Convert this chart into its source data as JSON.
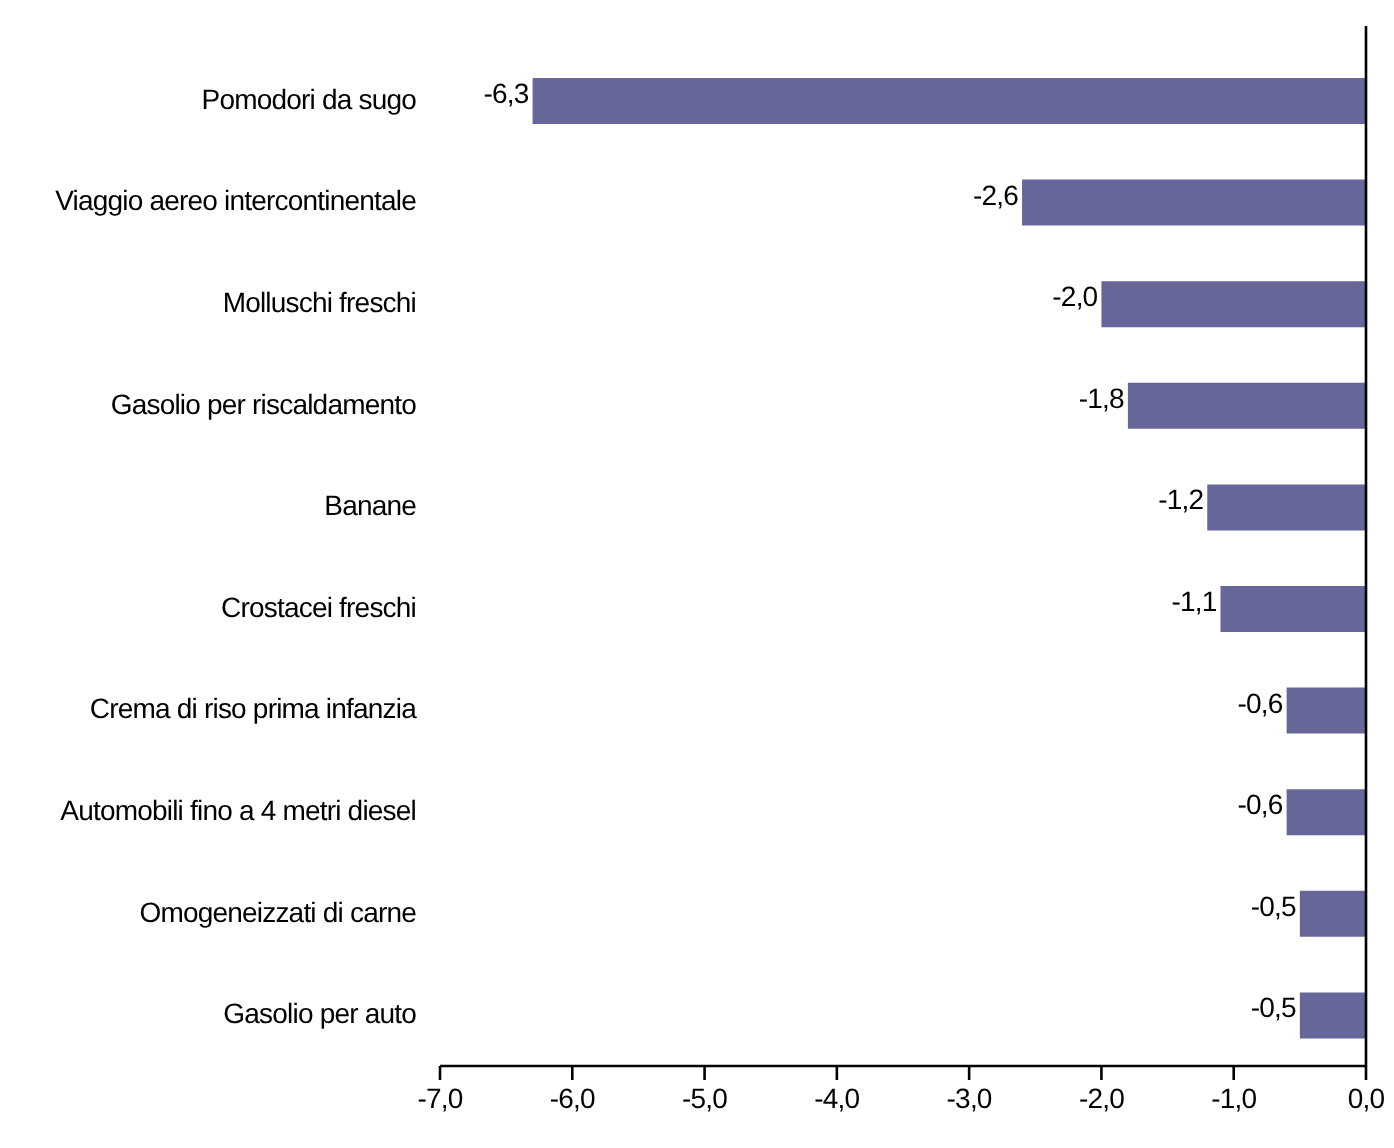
{
  "chart_data": {
    "type": "bar",
    "orientation": "horizontal",
    "categories": [
      "Pomodori da sugo",
      "Viaggio aereo intercontinentale",
      "Molluschi freschi",
      "Gasolio per riscaldamento",
      "Banane",
      "Crostacei freschi",
      "Crema di riso prima infanzia",
      "Automobili fino a 4 metri diesel",
      "Omogeneizzati di carne",
      "Gasolio per auto"
    ],
    "values": [
      -6.3,
      -2.6,
      -2.0,
      -1.8,
      -1.2,
      -1.1,
      -0.6,
      -0.6,
      -0.5,
      -0.5
    ],
    "value_labels": [
      "-6,3",
      "-2,6",
      "-2,0",
      "-1,8",
      "-1,2",
      "-1,1",
      "-0,6",
      "-0,6",
      "-0,5",
      "-0,5"
    ],
    "color": "#666699",
    "xlim": [
      -7,
      0
    ],
    "xticks": [
      {
        "value": -7,
        "label": "-7,0"
      },
      {
        "value": -6,
        "label": "-6,0"
      },
      {
        "value": -5,
        "label": "-5,0"
      },
      {
        "value": -4,
        "label": "-4,0"
      },
      {
        "value": -3,
        "label": "-3,0"
      },
      {
        "value": -2,
        "label": "-2,0"
      },
      {
        "value": -1,
        "label": "-1,0"
      },
      {
        "value": 0,
        "label": "0,0"
      }
    ]
  }
}
